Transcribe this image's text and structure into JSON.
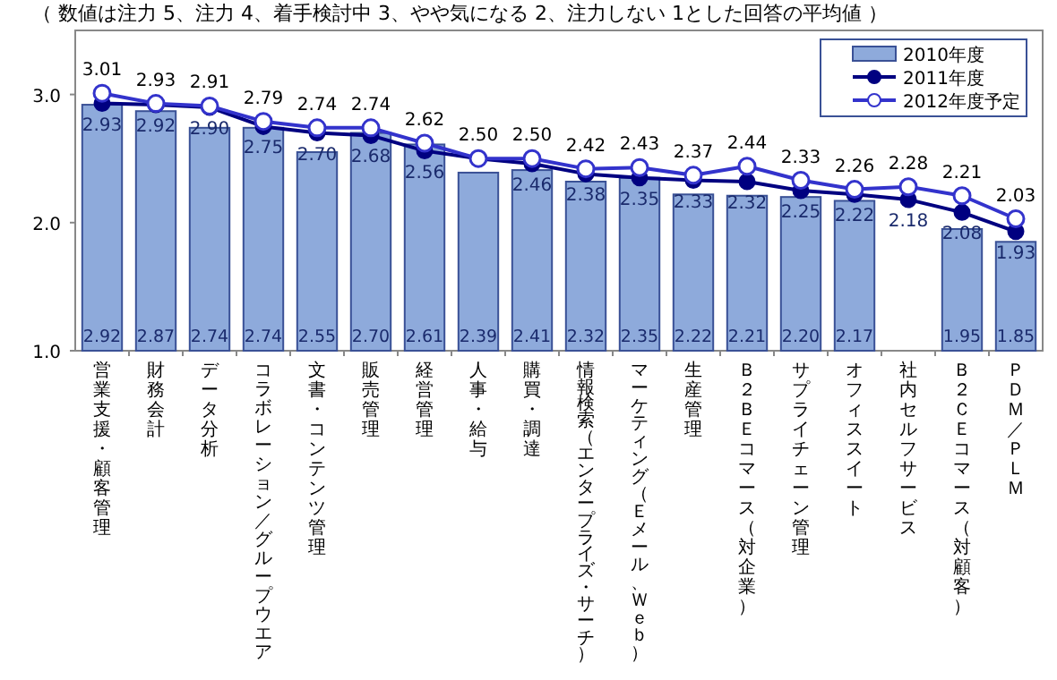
{
  "chart_data": {
    "type": "bar",
    "title": "（ 数値は注力 5、注力 4、着手検討中 3、やや気になる 2、注力しない 1とした回答の平均値 ）",
    "categories": [
      "営業支援・顧客管理",
      "財務会計",
      "データ分析",
      "コラボレーション／グループウエア",
      "文書・コンテンツ管理",
      "販売管理",
      "経営管理",
      "人事・給与",
      "購買・調達",
      "情報検索（エンタープライズ・サーチ）",
      "マーケティング（Ｅメール、Ｗｅｂ）",
      "生産管理",
      "Ｂ２ＢＥコマース（対企業）",
      "サプライチェーン管理",
      "オフィススイート",
      "社内セルフサービス",
      "Ｂ２ＣＥコマース（対顧客）",
      "ＰＤＭ／ＰＬＭ"
    ],
    "series": [
      {
        "name": "2010年度",
        "color": "#8eaadb",
        "values": [
          2.92,
          2.87,
          2.74,
          2.74,
          2.55,
          2.7,
          2.61,
          2.39,
          2.41,
          2.32,
          2.35,
          2.22,
          2.21,
          2.2,
          2.17,
          null,
          1.95,
          1.85
        ],
        "value_labels": [
          "2.92",
          "2.87",
          "2.74",
          "2.74",
          "2.55",
          "2.70",
          "2.61",
          "2.39",
          "2.41",
          "2.32",
          "2.35",
          "2.22",
          "2.21",
          "2.20",
          "2.17",
          null,
          "1.95",
          "1.85"
        ]
      },
      {
        "name": "2011年度",
        "type": "line",
        "color": "#000080",
        "marker": "circle",
        "values": [
          2.93,
          2.92,
          2.9,
          2.75,
          2.7,
          2.68,
          2.56,
          2.5,
          2.46,
          2.38,
          2.35,
          2.33,
          2.32,
          2.25,
          2.22,
          2.18,
          2.08,
          1.93
        ],
        "value_labels": [
          "2.93",
          "2.92",
          "2.90",
          "2.75",
          "2.70",
          "2.68",
          "2.56",
          null,
          "2.46",
          "2.38",
          "2.35",
          "2.33",
          "2.32",
          "2.25",
          "2.22",
          "2.18",
          "2.08",
          "1.93"
        ]
      },
      {
        "name": "2012年度予定",
        "type": "line",
        "color": "#3333cc",
        "marker": "circle",
        "values": [
          3.01,
          2.93,
          2.91,
          2.79,
          2.74,
          2.74,
          2.62,
          2.5,
          2.5,
          2.42,
          2.43,
          2.37,
          2.44,
          2.33,
          2.26,
          2.28,
          2.21,
          2.03
        ],
        "value_labels": [
          "3.01",
          "2.93",
          "2.91",
          "2.79",
          "2.74",
          "2.74",
          "2.62",
          "2.50",
          "2.50",
          "2.42",
          "2.43",
          "2.37",
          "2.44",
          "2.33",
          "2.26",
          "2.28",
          "2.21",
          "2.03"
        ]
      }
    ],
    "ylim": [
      1.0,
      3.5
    ],
    "yticks": [
      {
        "value": 1.0,
        "label": "1.0"
      },
      {
        "value": 2.0,
        "label": "2.0"
      },
      {
        "value": 3.0,
        "label": "3.0"
      }
    ],
    "grid": false,
    "legend": "top right"
  }
}
